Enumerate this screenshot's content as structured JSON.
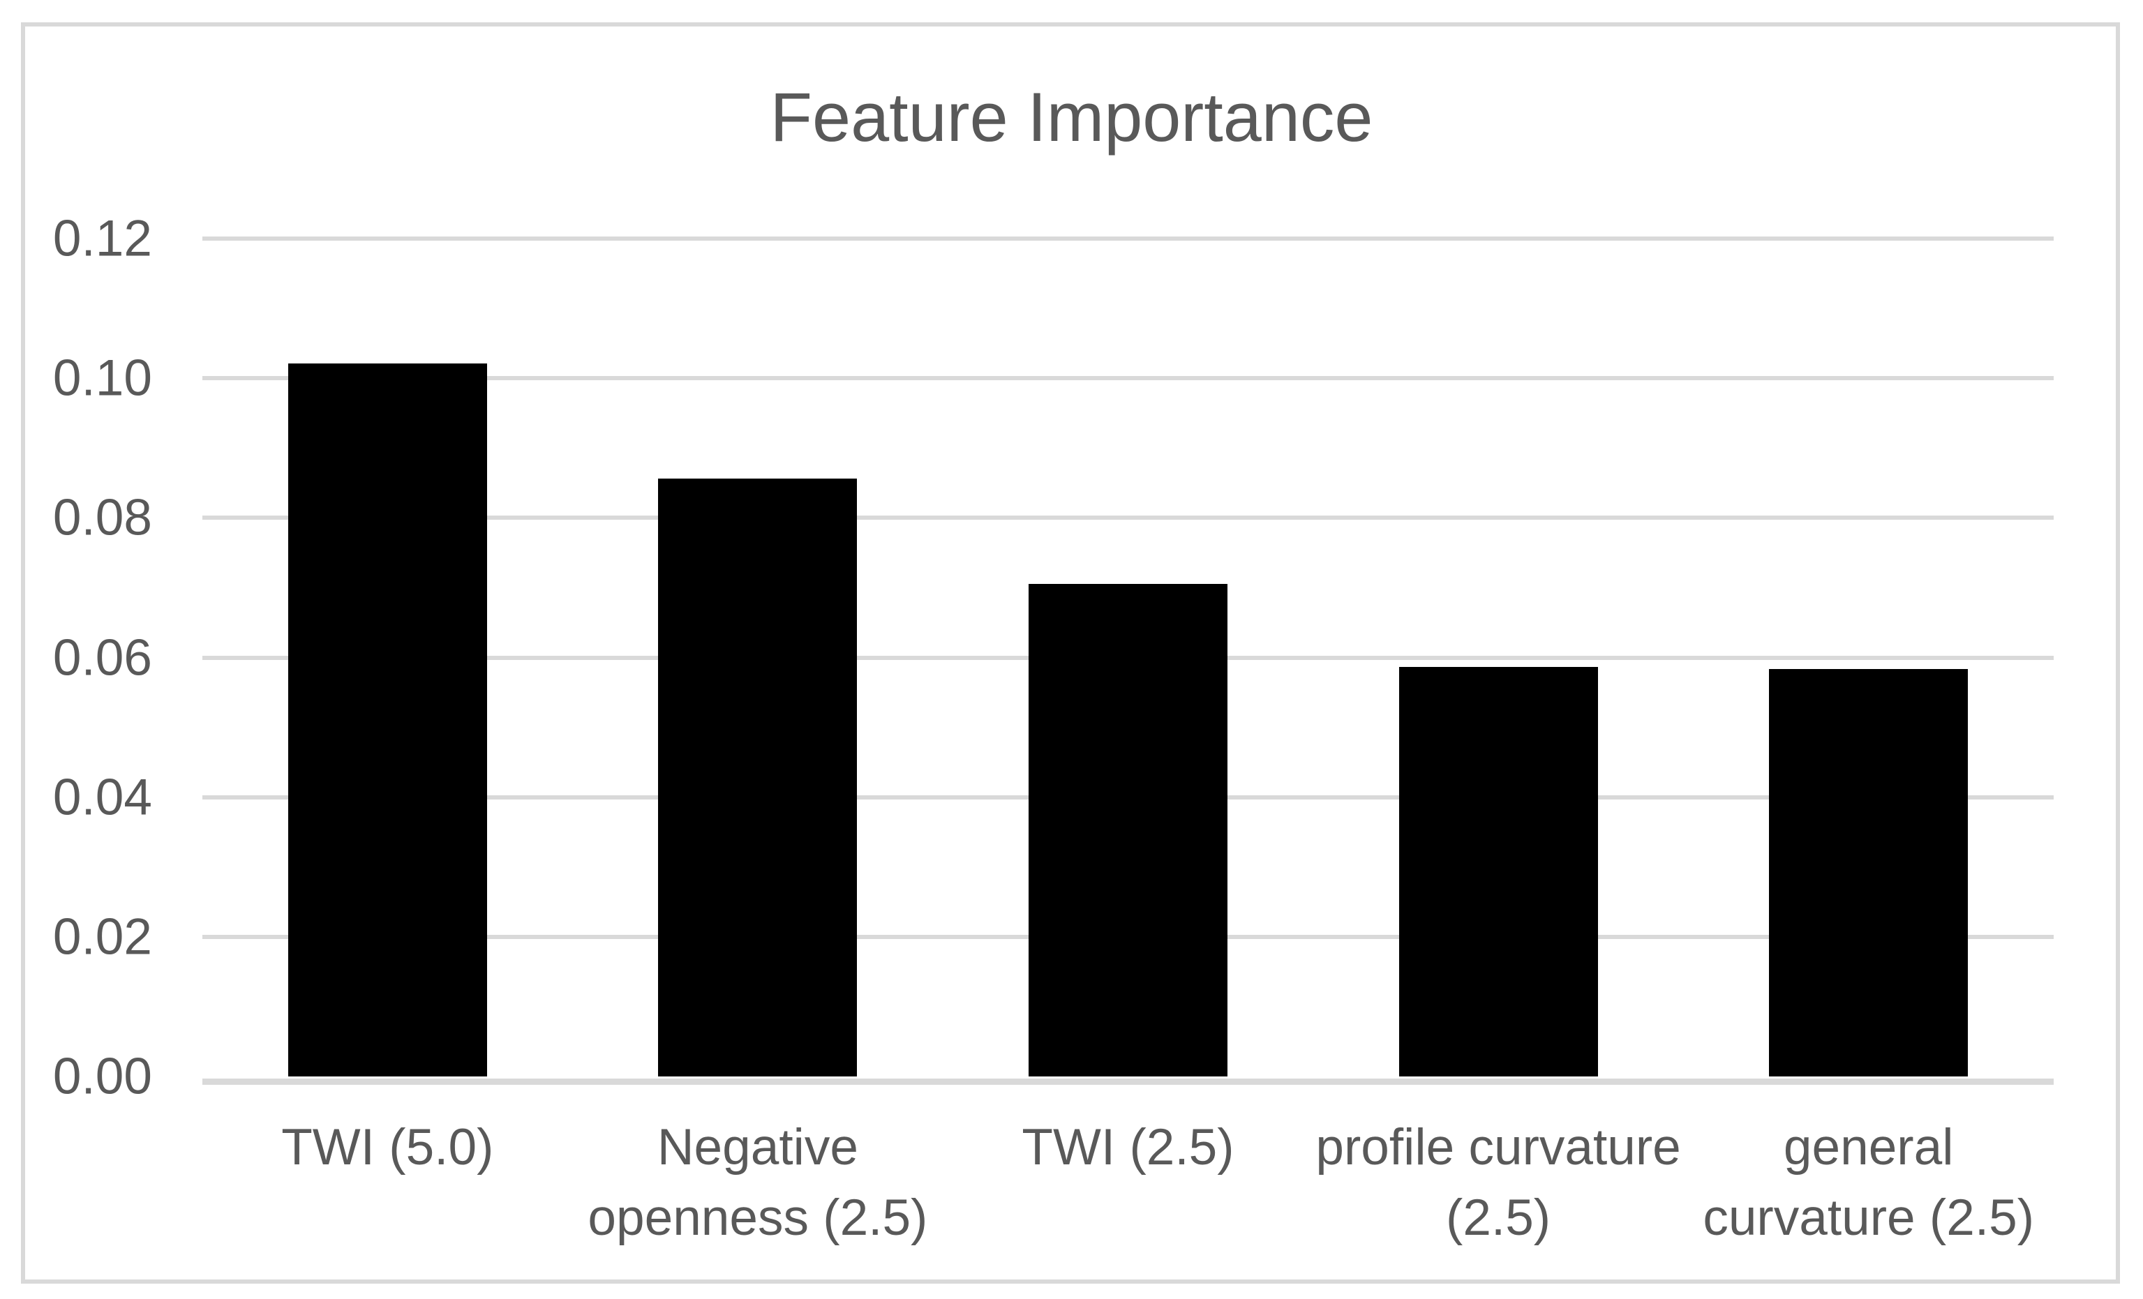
{
  "chart_data": {
    "type": "bar",
    "title": "Feature Importance",
    "categories": [
      "TWI (5.0)",
      "Negative openness (2.5)",
      "TWI (2.5)",
      "profile curvature (2.5)",
      "general curvature (2.5)"
    ],
    "category_lines": [
      [
        "TWI (5.0)"
      ],
      [
        "Negative",
        "openness (2.5)"
      ],
      [
        "TWI (2.5)"
      ],
      [
        "profile curvature",
        "(2.5)"
      ],
      [
        "general",
        "curvature (2.5)"
      ]
    ],
    "values": [
      0.1021,
      0.0856,
      0.0705,
      0.0587,
      0.0584
    ],
    "xlabel": "",
    "ylabel": "",
    "ylim": [
      0,
      0.12
    ],
    "ytick_step": 0.02,
    "ytick_labels": [
      "0.12",
      "0.10",
      "0.08",
      "0.06",
      "0.04",
      "0.02",
      "0.00"
    ],
    "grid": true,
    "legend": false,
    "colors": {
      "bar": "#000000",
      "gridline": "#d9d9d9",
      "axis_line": "#d9d9d9",
      "text": "#595959",
      "frame_border": "#d9d9d9",
      "background": "#ffffff"
    }
  }
}
